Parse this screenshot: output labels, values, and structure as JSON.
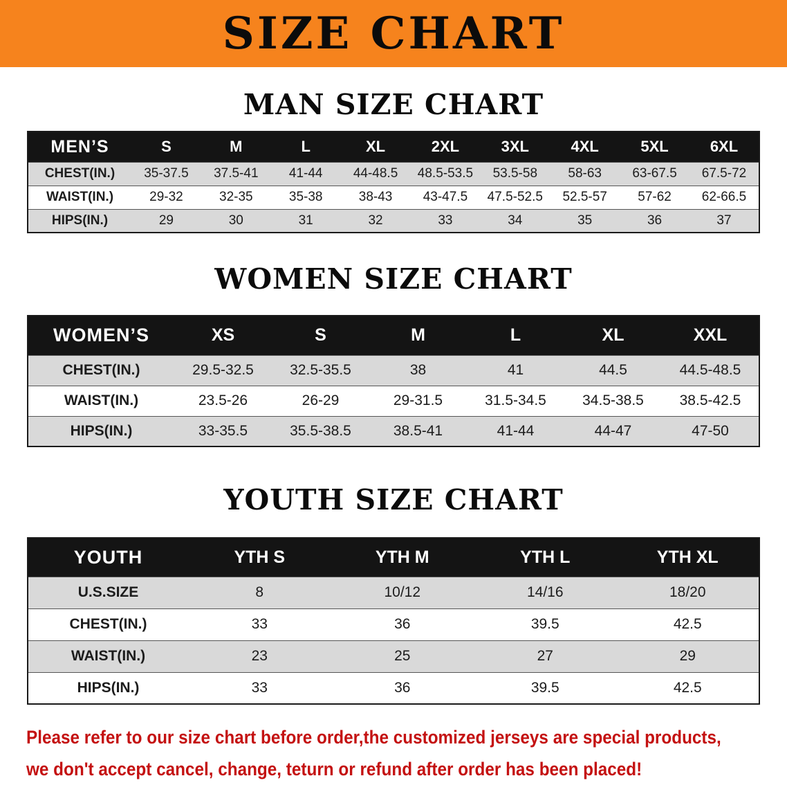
{
  "banner": {
    "title": "SIZE CHART"
  },
  "sections": [
    {
      "id": "men",
      "heading": "MAN SIZE CHART",
      "table": {
        "header": [
          "MEN’S",
          "S",
          "M",
          "L",
          "XL",
          "2XL",
          "3XL",
          "4XL",
          "5XL",
          "6XL"
        ],
        "rows": [
          {
            "label": "CHEST(IN.)",
            "values": [
              "35-37.5",
              "37.5-41",
              "41-44",
              "44-48.5",
              "48.5-53.5",
              "53.5-58",
              "58-63",
              "63-67.5",
              "67.5-72"
            ]
          },
          {
            "label": "WAIST(IN.)",
            "values": [
              "29-32",
              "32-35",
              "35-38",
              "38-43",
              "43-47.5",
              "47.5-52.5",
              "52.5-57",
              "57-62",
              "62-66.5"
            ]
          },
          {
            "label": "HIPS(IN.)",
            "values": [
              "29",
              "30",
              "31",
              "32",
              "33",
              "34",
              "35",
              "36",
              "37"
            ]
          }
        ]
      }
    },
    {
      "id": "women",
      "heading": "WOMEN SIZE CHART",
      "table": {
        "header": [
          "WOMEN’S",
          "XS",
          "S",
          "M",
          "L",
          "XL",
          "XXL"
        ],
        "rows": [
          {
            "label": "CHEST(IN.)",
            "values": [
              "29.5-32.5",
              "32.5-35.5",
              "38",
              "41",
              "44.5",
              "44.5-48.5"
            ]
          },
          {
            "label": "WAIST(IN.)",
            "values": [
              "23.5-26",
              "26-29",
              "29-31.5",
              "31.5-34.5",
              "34.5-38.5",
              "38.5-42.5"
            ]
          },
          {
            "label": "HIPS(IN.)",
            "values": [
              "33-35.5",
              "35.5-38.5",
              "38.5-41",
              "41-44",
              "44-47",
              "47-50"
            ]
          }
        ]
      }
    },
    {
      "id": "youth",
      "heading": "YOUTH SIZE CHART",
      "table": {
        "header": [
          "YOUTH",
          "YTH S",
          "YTH M",
          "YTH L",
          "YTH XL"
        ],
        "rows": [
          {
            "label": "U.S.SIZE",
            "values": [
              "8",
              "10/12",
              "14/16",
              "18/20"
            ]
          },
          {
            "label": "CHEST(IN.)",
            "values": [
              "33",
              "36",
              "39.5",
              "42.5"
            ]
          },
          {
            "label": "WAIST(IN.)",
            "values": [
              "23",
              "25",
              "27",
              "29"
            ]
          },
          {
            "label": "HIPS(IN.)",
            "values": [
              "33",
              "36",
              "39.5",
              "42.5"
            ]
          }
        ]
      }
    }
  ],
  "disclaimer": {
    "lines": [
      "Please refer to our size chart before order,the customized jerseys are special products,",
      "we don't accept cancel, change, teturn or refund after order has been placed!"
    ]
  },
  "colors": {
    "banner_bg": "#f6831d",
    "table_header_bg": "#141414",
    "row_alt_bg": "#d9d9d9",
    "disclaimer_red": "#c41111"
  }
}
